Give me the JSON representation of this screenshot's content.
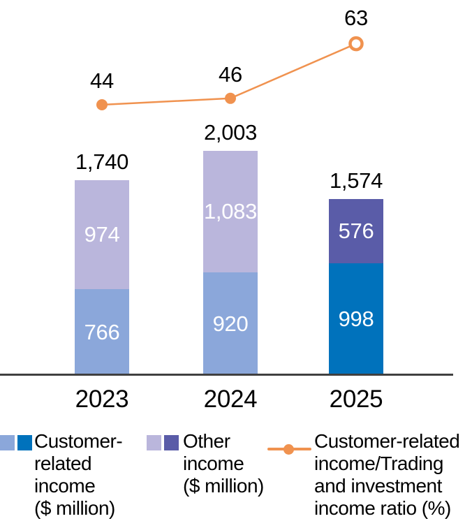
{
  "chart_data": {
    "type": "combo-stacked-bar-line",
    "categories": [
      "2023",
      "2024",
      "2025"
    ],
    "series": [
      {
        "name": "Customer-related income ($ million)",
        "type": "bar-stack-bottom",
        "values": [
          766,
          920,
          998
        ]
      },
      {
        "name": "Other income ($ million)",
        "type": "bar-stack-top",
        "values": [
          974,
          1083,
          576
        ]
      },
      {
        "name": "Customer-related income/Trading and investment income ratio (%)",
        "type": "line",
        "values": [
          44,
          46,
          63
        ],
        "last_marker_open": true
      }
    ],
    "bar_totals": [
      1740,
      2003,
      1574
    ],
    "highlight_category": "2025",
    "title": "",
    "xlabel": "",
    "ylabel": "",
    "y_axis_visible": false,
    "grid": false,
    "legend_position": "bottom"
  },
  "colors": {
    "customer_base": "#8BA7DA",
    "customer_highlight": "#0072BC",
    "other_base": "#BAB6DC",
    "other_highlight": "#5A5CA8",
    "line": "#F0924F",
    "axis": "#404040",
    "label_dark": "#000000",
    "label_light": "#FFFFFF"
  },
  "legend": {
    "items": [
      {
        "label": "Customer-related income ($ million)",
        "display": "Customer-\nrelated\nincome\n($ million)",
        "marker": "double-swatch",
        "swatches": [
          "customer_base",
          "customer_highlight"
        ]
      },
      {
        "label": "Other income ($ million)",
        "display": "Other\nincome\n($ million)",
        "marker": "double-swatch",
        "swatches": [
          "other_base",
          "other_highlight"
        ]
      },
      {
        "label": "Customer-related income/Trading and investment income ratio (%)",
        "display": "Customer-related\nincome/Trading\nand investment\nincome ratio (%)",
        "marker": "line-dot"
      }
    ]
  }
}
